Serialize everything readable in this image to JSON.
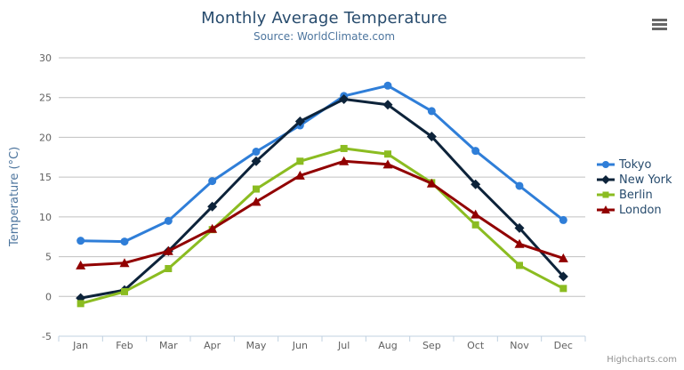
{
  "header": {
    "title": "Monthly Average Temperature",
    "subtitle": "Source: WorldClimate.com"
  },
  "chart_data": {
    "type": "line",
    "title": "Monthly Average Temperature",
    "subtitle": "Source: WorldClimate.com",
    "categories": [
      "Jan",
      "Feb",
      "Mar",
      "Apr",
      "May",
      "Jun",
      "Jul",
      "Aug",
      "Sep",
      "Oct",
      "Nov",
      "Dec"
    ],
    "series": [
      {
        "name": "Tokyo",
        "color": "#2f7ed8",
        "marker": "circle",
        "values": [
          7.0,
          6.9,
          9.5,
          14.5,
          18.2,
          21.5,
          25.2,
          26.5,
          23.3,
          18.3,
          13.9,
          9.6
        ]
      },
      {
        "name": "New York",
        "color": "#0d233a",
        "marker": "diamond",
        "values": [
          -0.2,
          0.8,
          5.7,
          11.3,
          17.0,
          22.0,
          24.8,
          24.1,
          20.1,
          14.1,
          8.6,
          2.5
        ]
      },
      {
        "name": "Berlin",
        "color": "#8bbc21",
        "marker": "square",
        "values": [
          -0.9,
          0.6,
          3.5,
          8.4,
          13.5,
          17.0,
          18.6,
          17.9,
          14.3,
          9.0,
          3.9,
          1.0
        ]
      },
      {
        "name": "London",
        "color": "#910000",
        "marker": "triangle",
        "values": [
          3.9,
          4.2,
          5.7,
          8.5,
          11.9,
          15.2,
          17.0,
          16.6,
          14.2,
          10.3,
          6.6,
          4.8
        ]
      }
    ],
    "xlabel": "",
    "ylabel": "Temperature (°C)",
    "ylim": [
      -5,
      30
    ],
    "ytick_interval": 5,
    "grid": true,
    "legend_position": "right"
  },
  "credits": {
    "label": "Highcharts.com"
  },
  "icons": {
    "context_menu": "hamburger-icon"
  },
  "colors": {
    "grid": "#c0c0c0",
    "axis_line": "#c0d0e0",
    "tick_label": "#606060",
    "title_text": "#274b6d",
    "subtitle_text": "#4d759e",
    "axis_title": "#4d759e",
    "legend_text": "#274b6d",
    "credits_text": "#909090",
    "menu_icon": "#666666"
  }
}
